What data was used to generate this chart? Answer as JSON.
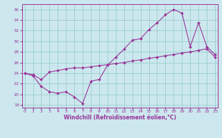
{
  "xlabel": "Windchill (Refroidissement éolien,°C)",
  "bg_color": "#cce8ee",
  "grid_color": "#99cccc",
  "line_color": "#993399",
  "x_vals": [
    0,
    1,
    2,
    3,
    4,
    5,
    6,
    7,
    8,
    9,
    10,
    11,
    12,
    13,
    14,
    15,
    16,
    17,
    18,
    19,
    20,
    21,
    22,
    23
  ],
  "y_line1": [
    24.0,
    23.5,
    21.5,
    20.5,
    20.2,
    20.5,
    19.5,
    18.3,
    22.5,
    22.8,
    25.5,
    27.0,
    28.5,
    30.2,
    30.5,
    32.2,
    33.5,
    35.0,
    36.0,
    35.3,
    29.0,
    33.5,
    29.0,
    27.5
  ],
  "y_line2": [
    24.0,
    23.7,
    22.8,
    24.2,
    24.5,
    24.8,
    25.0,
    25.0,
    25.2,
    25.4,
    25.6,
    25.8,
    26.0,
    26.3,
    26.5,
    26.8,
    27.0,
    27.3,
    27.5,
    27.8,
    28.0,
    28.3,
    28.6,
    27.0
  ],
  "xlim": [
    -0.3,
    23.3
  ],
  "ylim": [
    17.5,
    37.0
  ],
  "yticks": [
    18,
    20,
    22,
    24,
    26,
    28,
    30,
    32,
    34,
    36
  ],
  "xticks": [
    0,
    1,
    2,
    3,
    4,
    5,
    6,
    7,
    8,
    9,
    10,
    11,
    12,
    13,
    14,
    15,
    16,
    17,
    18,
    19,
    20,
    21,
    22,
    23
  ],
  "xlabel_fontsize": 5.5,
  "tick_fontsize": 4.5,
  "linewidth": 0.8,
  "markersize": 2.0
}
